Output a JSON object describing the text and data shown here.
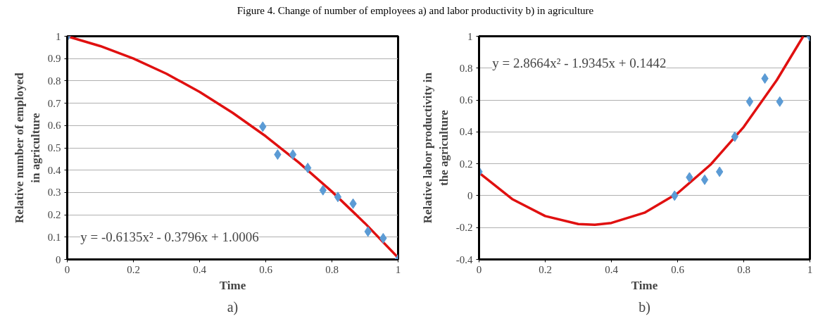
{
  "chart_data": [
    {
      "type": "scatter",
      "title": "Figure 4. Change of number of employees a) and labor productivity b) in agriculture",
      "xlabel": "Time",
      "ylabel": "Relative number of employed\nin agriculture",
      "annotations": [
        "y = -0.6135x² - 0.3796x + 1.0006",
        "a)"
      ],
      "xlim": [
        0,
        1
      ],
      "ylim": [
        0,
        1
      ],
      "xticks": [
        0,
        0.2,
        0.4,
        0.6,
        0.8,
        1
      ],
      "yticks": [
        0,
        0.1,
        0.2,
        0.3,
        0.4,
        0.5,
        0.6,
        0.7,
        0.8,
        0.9,
        1
      ],
      "grid": true,
      "series": [
        {
          "marker": "diamond",
          "color": "#5b9bd5",
          "x": [
            0,
            0.591,
            0.636,
            0.682,
            0.727,
            0.773,
            0.818,
            0.864,
            0.909,
            0.955,
            1
          ],
          "values": [
            1,
            0.595,
            0.47,
            0.47,
            0.41,
            0.31,
            0.28,
            0.25,
            0.125,
            0.095,
            0
          ]
        },
        {
          "type": "line",
          "color": "#e01010",
          "x": [
            0,
            0.1,
            0.2,
            0.3,
            0.4,
            0.5,
            0.6,
            0.7,
            0.8,
            0.9,
            1
          ],
          "values": [
            1.0,
            0.956,
            0.9,
            0.832,
            0.751,
            0.657,
            0.552,
            0.434,
            0.304,
            0.162,
            0.008
          ]
        }
      ]
    },
    {
      "type": "scatter",
      "xlabel": "Time",
      "ylabel": "Relative labor productivity in\nthe agriculture",
      "annotations": [
        "y = 2.8664x² - 1.9345x + 0.1442",
        "b)"
      ],
      "xlim": [
        0,
        1
      ],
      "ylim": [
        -0.4,
        1
      ],
      "xticks": [
        0,
        0.2,
        0.4,
        0.6,
        0.8,
        1
      ],
      "yticks": [
        -0.4,
        -0.2,
        0,
        0.2,
        0.4,
        0.6,
        0.8,
        1
      ],
      "grid": true,
      "series": [
        {
          "marker": "diamond",
          "color": "#5b9bd5",
          "x": [
            0,
            0.591,
            0.636,
            0.682,
            0.727,
            0.773,
            0.818,
            0.864,
            0.909,
            1
          ],
          "values": [
            0.15,
            0.0,
            0.115,
            0.1,
            0.15,
            0.37,
            0.59,
            0.735,
            0.59,
            1
          ]
        },
        {
          "type": "line",
          "color": "#e01010",
          "x": [
            0,
            0.1,
            0.2,
            0.3,
            0.35,
            0.4,
            0.5,
            0.6,
            0.7,
            0.8,
            0.9,
            0.98
          ],
          "values": [
            0.144,
            -0.021,
            -0.128,
            -0.178,
            -0.182,
            -0.171,
            -0.107,
            0.015,
            0.195,
            0.431,
            0.725,
            1.0
          ]
        }
      ]
    }
  ]
}
